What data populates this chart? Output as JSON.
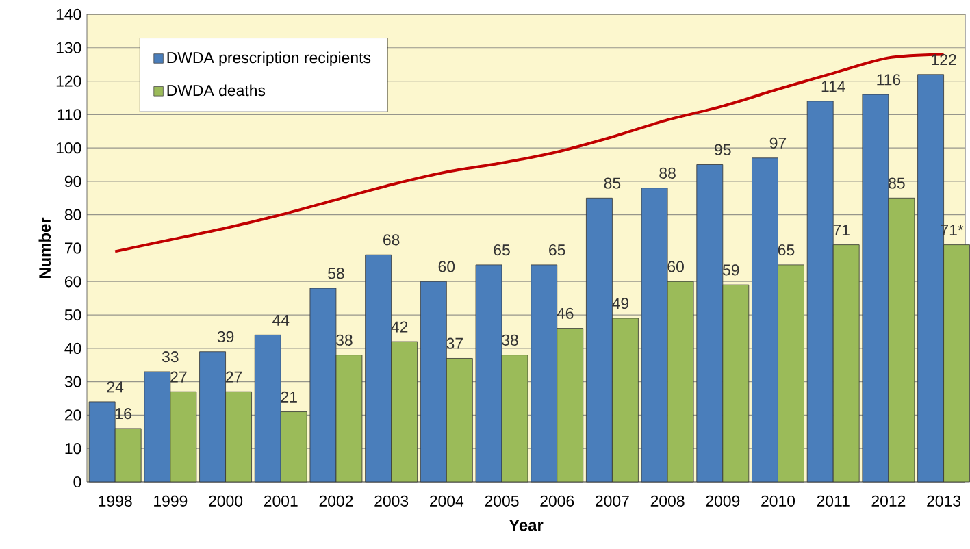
{
  "chart_data": {
    "type": "bar",
    "xlabel": "Year",
    "ylabel": "Number",
    "categories": [
      "1998",
      "1999",
      "2000",
      "2001",
      "2002",
      "2003",
      "2004",
      "2005",
      "2006",
      "2007",
      "2008",
      "2009",
      "2010",
      "2011",
      "2012",
      "2013"
    ],
    "series": [
      {
        "name": "DWDA prescription recipients",
        "color": "#4a7ebb",
        "values": [
          24,
          33,
          39,
          44,
          58,
          68,
          60,
          65,
          65,
          85,
          88,
          95,
          97,
          114,
          116,
          122
        ],
        "value_labels": [
          "24",
          "33",
          "39",
          "44",
          "58",
          "68",
          "60",
          "65",
          "65",
          "85",
          "88",
          "95",
          "97",
          "114",
          "116",
          "122"
        ]
      },
      {
        "name": "DWDA deaths",
        "color": "#9bbb59",
        "values": [
          16,
          27,
          27,
          21,
          38,
          42,
          37,
          38,
          46,
          49,
          60,
          59,
          65,
          71,
          85,
          71
        ],
        "value_labels": [
          "16",
          "27",
          "27",
          "21",
          "38",
          "42",
          "37",
          "38",
          "46",
          "49",
          "60",
          "59",
          "65",
          "71",
          "85",
          "71*"
        ]
      },
      {
        "type": "line",
        "color": "#c00000",
        "values": [
          69,
          72.5,
          76,
          80,
          84.5,
          89,
          92.8,
          95.5,
          98.8,
          103.3,
          108.4,
          112.5,
          117.6,
          122.4,
          127,
          128
        ]
      }
    ],
    "ylim": [
      0,
      140
    ],
    "yticks": [
      0,
      10,
      20,
      30,
      40,
      50,
      60,
      70,
      80,
      90,
      100,
      110,
      120,
      130,
      140
    ],
    "grid": "y",
    "legend": "top left"
  }
}
